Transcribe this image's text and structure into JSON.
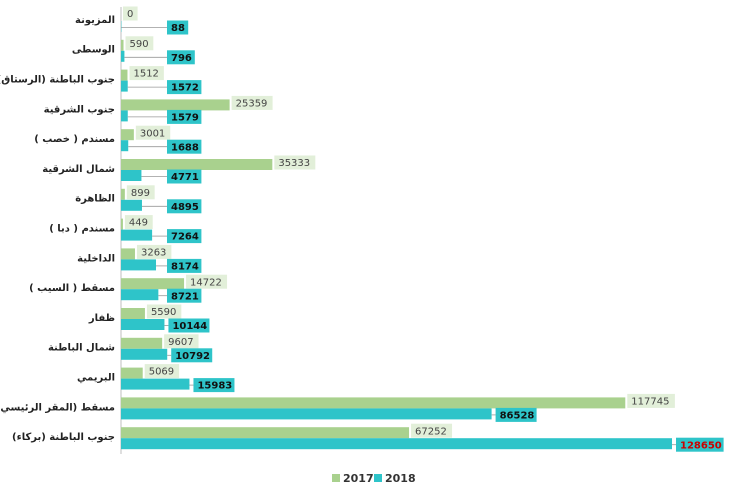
{
  "chart_data": {
    "type": "bar",
    "orientation": "horizontal",
    "categories": [
      "المزيونة",
      "الوسطى",
      "جنوب الباطنة (الرستاق)",
      "جنوب الشرقية",
      "مسندم ( خصب )",
      "شمال الشرقية",
      "الظاهرة",
      "مسندم ( دبا )",
      "الداخلية",
      "مسقط ( السيب )",
      "ظفار",
      "شمال الباطنة",
      "البريمي",
      "مسقط (المقر الرئيسي )",
      "جنوب الباطنة (بركاء)"
    ],
    "series": [
      {
        "name": "2017",
        "color": "#a9d18e",
        "values": [
          0,
          590,
          1512,
          25359,
          3001,
          35333,
          899,
          449,
          3263,
          14722,
          5590,
          9607,
          5069,
          117745,
          67252
        ]
      },
      {
        "name": "2018",
        "color": "#2ec4c9",
        "values": [
          88,
          796,
          1572,
          1579,
          1688,
          4771,
          4895,
          7264,
          8174,
          8721,
          10144,
          10792,
          15983,
          86528,
          128650
        ]
      }
    ],
    "highlight_value_color": "#cc0000",
    "xlim": [
      0,
      140000
    ],
    "grid": false,
    "legend": {
      "position": "bottom",
      "entries": [
        "2017",
        "2018"
      ]
    },
    "title": "",
    "xlabel": "",
    "ylabel": ""
  }
}
